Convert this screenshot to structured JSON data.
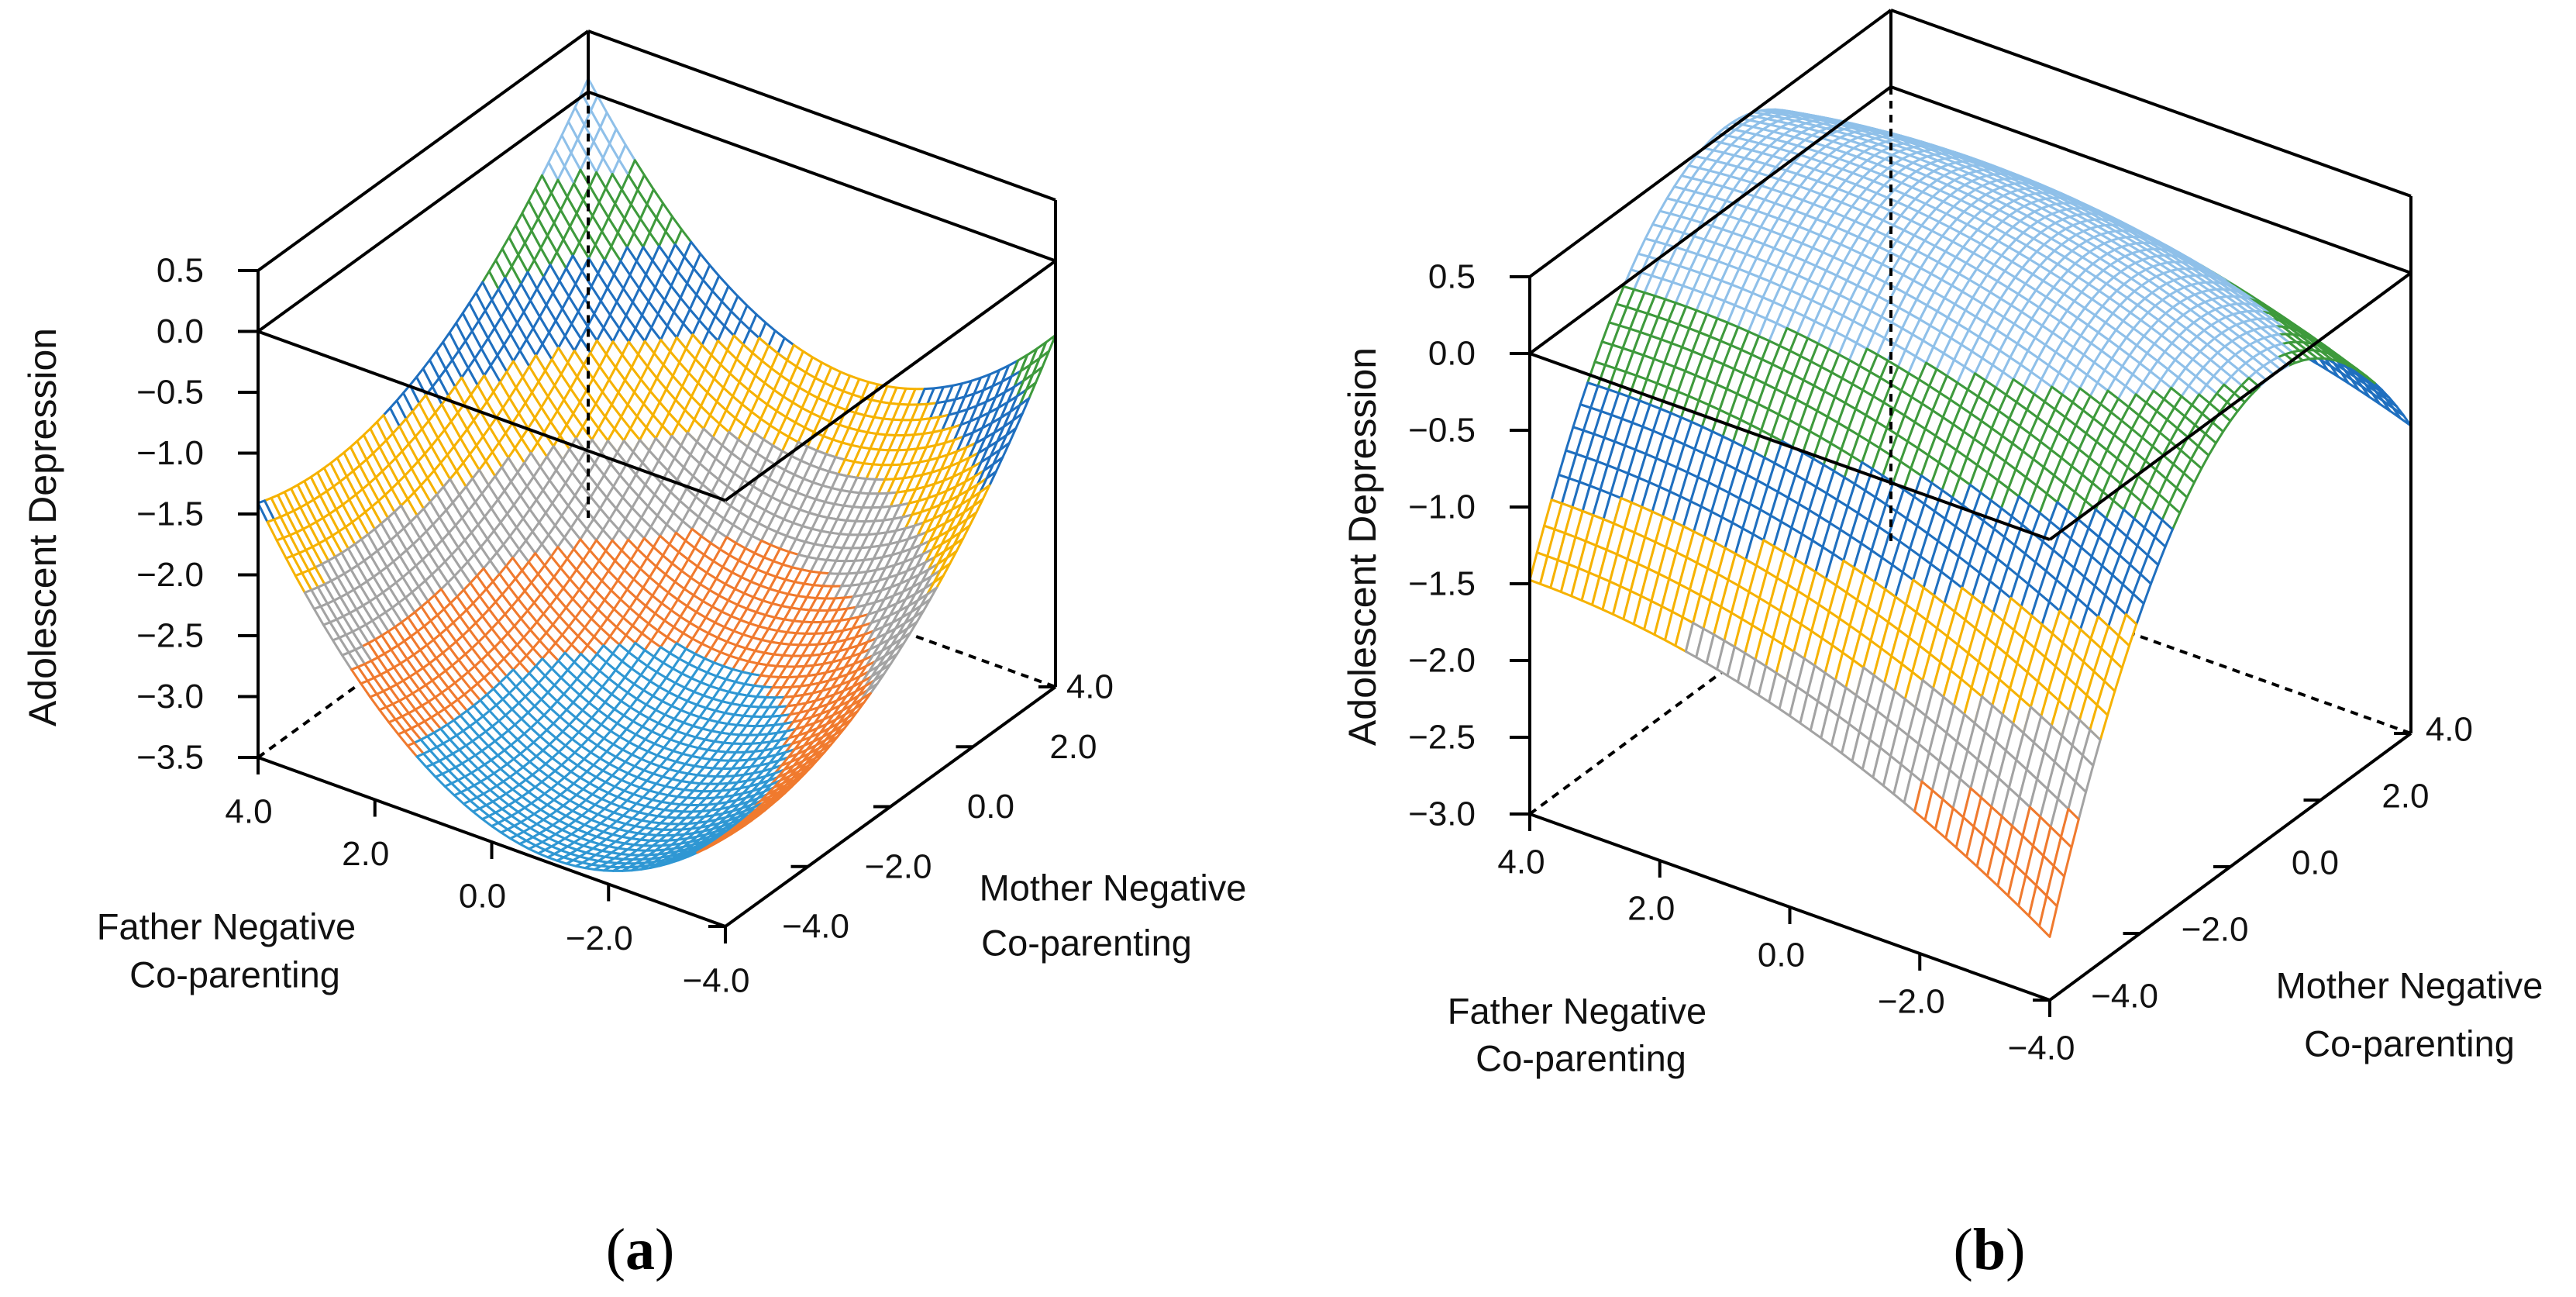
{
  "chart_data": [
    {
      "panel": "a",
      "type": "surface",
      "caption": {
        "open": "(",
        "letter": "a",
        "close": ")"
      },
      "zlabel": "Adolescent Depression",
      "xlabel_lines": [
        "Father Negative",
        "Co-parenting"
      ],
      "ylabel_lines": [
        "Mother Negative",
        "Co-parenting"
      ],
      "x_ticks": [
        "4.0",
        "2.0",
        "0.0",
        "−2.0",
        "−4.0"
      ],
      "y_ticks": [
        "−4.0",
        "−2.0",
        "0.0",
        "2.0",
        "4.0"
      ],
      "z_ticks": [
        "0.5",
        "0.0",
        "−0.5",
        "−1.0",
        "−1.5",
        "−2.0",
        "−2.5",
        "−3.0",
        "−3.5"
      ],
      "xlim": [
        -4,
        4
      ],
      "ylim": [
        -4,
        4
      ],
      "zlim": [
        -3.5,
        0.5
      ],
      "surface_quadratic": {
        "c0": -3.09,
        "cf": 0.13,
        "cm": 0.23,
        "cff": 0.08,
        "cmm": 0.04,
        "cfm": -0.01
      },
      "bands": [
        {
          "min": -9,
          "max": -3.0,
          "color": "#2f97d3"
        },
        {
          "min": -3.0,
          "max": -2.5,
          "color": "#f07a2e"
        },
        {
          "min": -2.5,
          "max": -2.0,
          "color": "#a3a3a3"
        },
        {
          "min": -2.0,
          "max": -1.5,
          "color": "#f6b200"
        },
        {
          "min": -1.5,
          "max": -1.0,
          "color": "#1f6fbf"
        },
        {
          "min": -1.0,
          "max": -0.5,
          "color": "#3e9a3c"
        },
        {
          "min": -0.5,
          "max": 9,
          "color": "#8fc0e9"
        }
      ]
    },
    {
      "panel": "b",
      "type": "surface",
      "caption": {
        "open": "(",
        "letter": "b",
        "close": ")"
      },
      "zlabel": "Adolescent Depression",
      "xlabel_lines": [
        "Father Negative",
        "Co-parenting"
      ],
      "ylabel_lines": [
        "Mother Negative",
        "Co-parenting"
      ],
      "x_ticks": [
        "4.0",
        "2.0",
        "0.0",
        "−2.0",
        "−4.0"
      ],
      "y_ticks": [
        "−4.0",
        "−2.0",
        "0.0",
        "2.0",
        "4.0"
      ],
      "z_ticks": [
        "0.5",
        "0.0",
        "−0.5",
        "−1.0",
        "−1.5",
        "−2.0",
        "−2.5",
        "−3.0"
      ],
      "xlim": [
        -4,
        4
      ],
      "ylim": [
        -4,
        4
      ],
      "zlim": [
        -3.0,
        0.5
      ],
      "surface_quadratic": {
        "c0": 0.4888,
        "cf": 0.077,
        "cm": 0.137,
        "cff": -0.0173,
        "cmm": -0.106,
        "cfm": -0.0155
      },
      "bands": [
        {
          "min": -9,
          "max": -2.5,
          "color": "#2f97d3"
        },
        {
          "min": -2.5,
          "max": -2.0,
          "color": "#f07a2e"
        },
        {
          "min": -2.0,
          "max": -1.5,
          "color": "#a3a3a3"
        },
        {
          "min": -1.5,
          "max": -1.0,
          "color": "#f6b200"
        },
        {
          "min": -1.0,
          "max": -0.5,
          "color": "#1f6fbf"
        },
        {
          "min": -0.5,
          "max": 0.0,
          "color": "#3e9a3c"
        },
        {
          "min": 0.0,
          "max": 9,
          "color": "#8fc0e9"
        }
      ]
    }
  ]
}
